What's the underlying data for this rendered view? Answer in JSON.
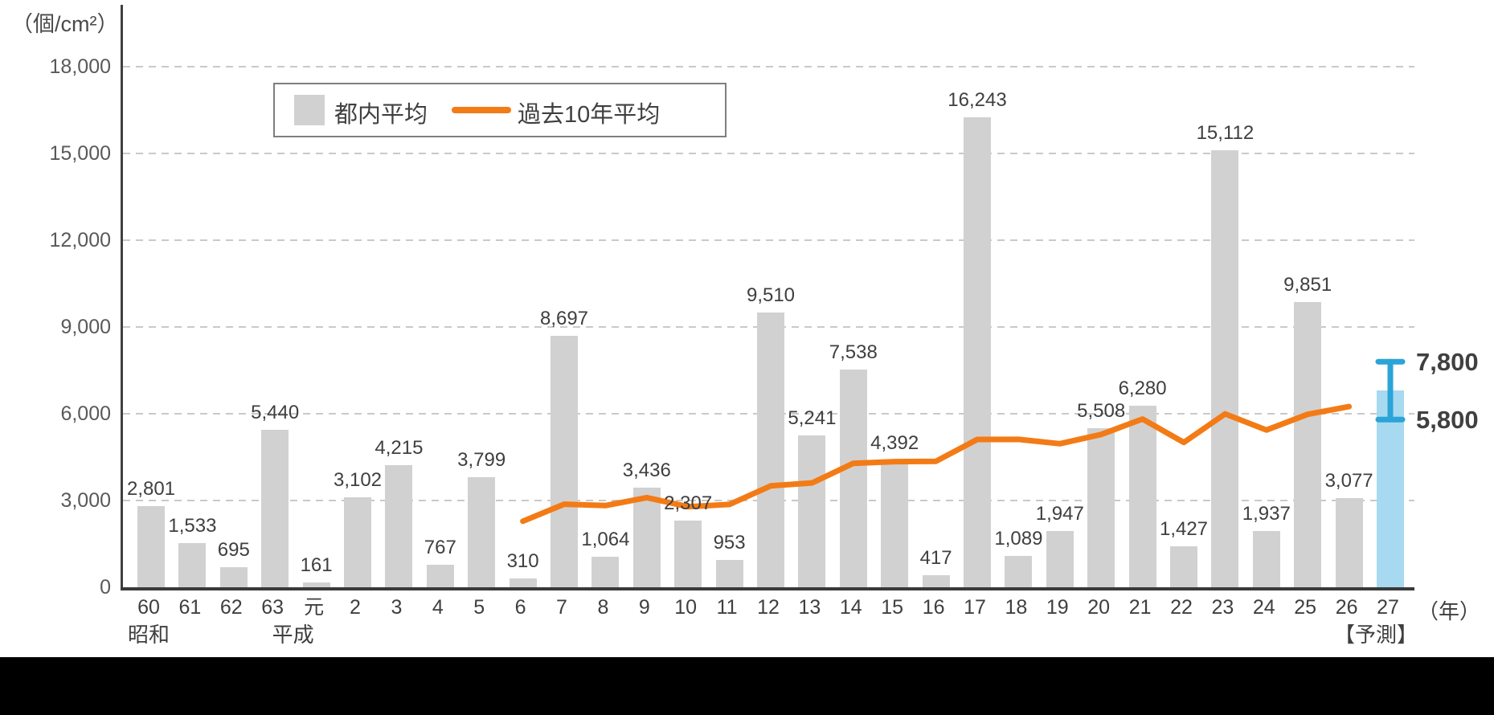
{
  "chart_data": {
    "type": "bar",
    "title": "",
    "ylabel": "（個/cm²）",
    "xlabel": "（年）",
    "ylim": [
      0,
      18000
    ],
    "ytick_interval": 3000,
    "yticks": [
      "0",
      "3,000",
      "6,000",
      "9,000",
      "12,000",
      "15,000",
      "18,000"
    ],
    "grid": "horizontal-dashed",
    "gridline_color": "#c9c9c9",
    "categories": [
      "60",
      "61",
      "62",
      "63",
      "元",
      "2",
      "3",
      "4",
      "5",
      "6",
      "7",
      "8",
      "9",
      "10",
      "11",
      "12",
      "13",
      "14",
      "15",
      "16",
      "17",
      "18",
      "19",
      "20",
      "21",
      "22",
      "23",
      "24",
      "25",
      "26",
      "27"
    ],
    "era_labels": [
      {
        "label": "昭和",
        "at": "60"
      },
      {
        "label": "平成",
        "at": "元"
      },
      {
        "label": "【予測】",
        "at": "27"
      }
    ],
    "legend": {
      "position": "top-left-inside",
      "entries": [
        "都内平均",
        "過去10年平均"
      ]
    },
    "series": [
      {
        "name": "都内平均",
        "type": "bar",
        "color": "#d2d1d1",
        "values": [
          2801,
          1533,
          695,
          5440,
          161,
          3102,
          4215,
          767,
          3799,
          310,
          8697,
          1064,
          3436,
          2307,
          953,
          9510,
          5241,
          7538,
          4392,
          417,
          16243,
          1089,
          1947,
          5508,
          6280,
          1427,
          15112,
          1937,
          9851,
          3077
        ],
        "labels": [
          "2,801",
          "1,533",
          "695",
          "5,440",
          "161",
          "3,102",
          "4,215",
          "767",
          "3,799",
          "310",
          "8,697",
          "1,064",
          "3,436",
          "2,307",
          "953",
          "9,510",
          "5,241",
          "7,538",
          "4,392",
          "417",
          "16,243",
          "1,089",
          "1,947",
          "5,508",
          "6,280",
          "1,427",
          "15,112",
          "1,937",
          "9,851",
          "3,077"
        ]
      },
      {
        "name": "過去10年平均",
        "type": "line",
        "color": "#f37b16",
        "x_start_category": "6",
        "values": [
          2282,
          2872,
          2825,
          3099,
          2786,
          2865,
          3506,
          3608,
          4286,
          4345,
          4356,
          5110,
          5113,
          4964,
          5284,
          5817,
          5008,
          5995,
          5435,
          5981,
          6247
        ]
      },
      {
        "name": "予測",
        "type": "bar",
        "category": "27",
        "color": "#a7d9f0",
        "value": 6800,
        "range": [
          5800,
          7800
        ],
        "range_labels": [
          "5,800",
          "7,800"
        ],
        "error_color": "#2ba4d8"
      }
    ]
  }
}
